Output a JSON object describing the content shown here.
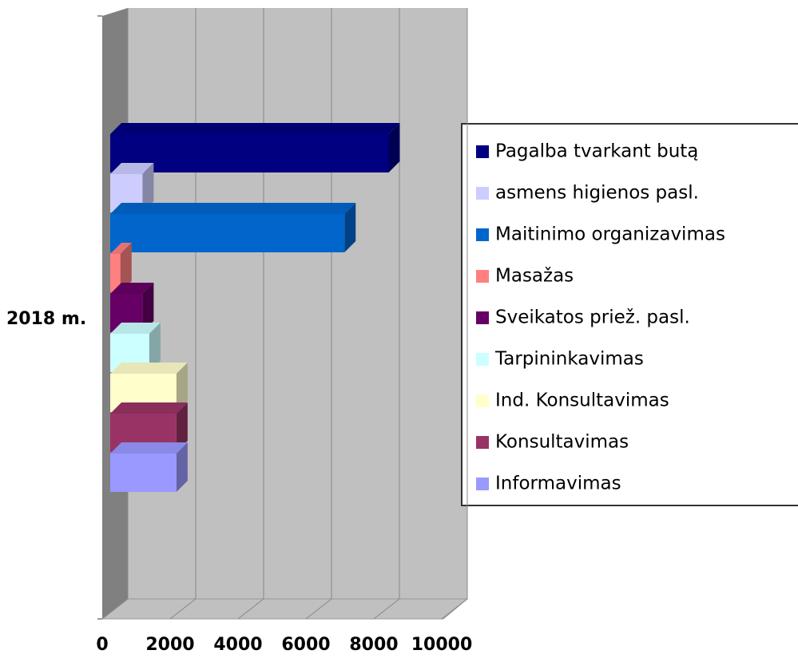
{
  "chart_data": {
    "type": "bar3d_horizontal",
    "categories": [
      "2018 m."
    ],
    "series": [
      {
        "name": "Pagalba tvarkant butą",
        "color": "#000080",
        "values": [
          8200
        ]
      },
      {
        "name": "asmens higienos pasl.",
        "color": "#ccccff",
        "values": [
          950
        ]
      },
      {
        "name": "Maitinimo organizavimas",
        "color": "#0066cc",
        "values": [
          6900
        ]
      },
      {
        "name": "Masažas",
        "color": "#ff8080",
        "values": [
          300
        ]
      },
      {
        "name": "Sveikatos priež. pasl.",
        "color": "#660066",
        "values": [
          950
        ]
      },
      {
        "name": "Tarpininkavimas",
        "color": "#ccffff",
        "values": [
          1150
        ]
      },
      {
        "name": "Ind. Konsultavimas",
        "color": "#ffffcc",
        "values": [
          1950
        ]
      },
      {
        "name": "Konsultavimas",
        "color": "#993366",
        "values": [
          1950
        ]
      },
      {
        "name": "Informavimas",
        "color": "#9999ff",
        "values": [
          1950
        ]
      }
    ],
    "xlim": [
      0,
      10000
    ],
    "xticks": [
      0,
      2000,
      4000,
      6000,
      8000,
      10000
    ],
    "grid": true,
    "legend": "right"
  }
}
